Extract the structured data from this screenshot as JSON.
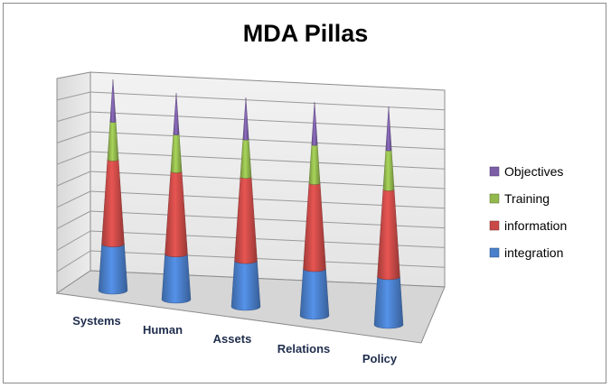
{
  "chart_data": {
    "type": "bar",
    "subtype": "3d-stacked-cone",
    "title": "MDA Pillas",
    "categories": [
      "Systems",
      "Human",
      "Assets",
      "Relations",
      "Policy"
    ],
    "series": [
      {
        "name": "integration",
        "color": "#4a7fcb",
        "values": [
          22,
          22,
          22,
          22,
          22
        ]
      },
      {
        "name": "information",
        "color": "#c94a47",
        "values": [
          40,
          40,
          40,
          40,
          40
        ]
      },
      {
        "name": "Training",
        "color": "#93b94e",
        "values": [
          18,
          18,
          18,
          18,
          18
        ]
      },
      {
        "name": "Objectives",
        "color": "#7b5ea7",
        "values": [
          20,
          20,
          20,
          20,
          20
        ]
      }
    ],
    "legend_position": "right",
    "grid": true,
    "ylim": [
      0,
      100
    ]
  }
}
